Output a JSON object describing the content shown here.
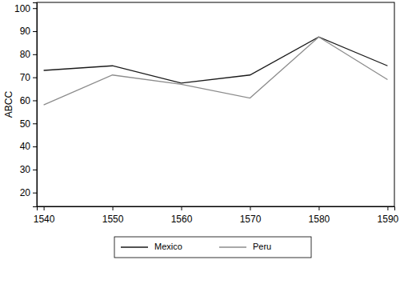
{
  "chart_data": {
    "type": "line",
    "y_label": "ABCC",
    "x": [
      1540,
      1550,
      1560,
      1570,
      1580,
      1590
    ],
    "series": [
      {
        "name": "Mexico",
        "color": "#1a1a1a",
        "values": [
          73,
          75,
          67.5,
          71,
          87.5,
          75
        ]
      },
      {
        "name": "Peru",
        "color": "#8c8c8c",
        "values": [
          58,
          71,
          67,
          61,
          87.5,
          69
        ]
      }
    ],
    "xlim": [
      1539,
      1591
    ],
    "xticks": [
      1540,
      1550,
      1560,
      1570,
      1580,
      1590
    ],
    "ylim": [
      14,
      102.5
    ],
    "yticks": [
      20,
      30,
      40,
      50,
      60,
      70,
      80,
      90,
      100
    ],
    "grid": false,
    "legend": "bottom"
  }
}
